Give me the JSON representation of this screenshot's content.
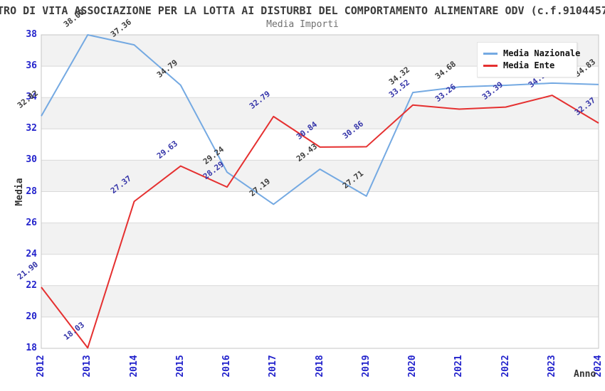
{
  "title": "TRO DI VITA ASSOCIAZIONE PER LA LOTTA AI DISTURBI DEL COMPORTAMENTO ALIMENTARE ODV (c.f.9104457",
  "subtitle": "Media Importi",
  "colors": {
    "tick_blue": "#2323cc",
    "band_gray": "#f2f2f2",
    "gridline": "#d9d9d9",
    "plot_border": "#c6c6c6",
    "title_gray": "#3c3c3c",
    "subtitle_gray": "#707070"
  },
  "chart_data": {
    "type": "line",
    "title": "Media Importi",
    "xlabel": "Anno",
    "ylabel": "Media",
    "x": [
      "2012",
      "2013",
      "2014",
      "2015",
      "2016",
      "2017",
      "2018",
      "2019",
      "2020",
      "2021",
      "2022",
      "2023",
      "2024"
    ],
    "yticks": [
      18,
      20,
      22,
      24,
      26,
      28,
      30,
      32,
      34,
      36,
      38
    ],
    "ylim": [
      18,
      38
    ],
    "grid": "horizontal, alternating gray bands every 2 units",
    "legend_position": "top-right",
    "series": [
      {
        "name": "Media Nazionale",
        "color": "#74a9e2",
        "label_color": "#3d3d3d",
        "values": [
          32.82,
          38.0,
          37.36,
          34.79,
          29.24,
          27.19,
          29.43,
          27.71,
          34.32,
          34.68,
          34.78,
          34.92,
          34.83
        ],
        "labels": [
          "32.82",
          "38.00",
          "37.36",
          "34.79",
          "29.24",
          "27.19",
          "29.43",
          "27.71",
          "34.32",
          "34.68",
          "34.78",
          "34.92",
          "34.83"
        ]
      },
      {
        "name": "Media Ente",
        "color": "#e53030",
        "label_color": "#3434a8",
        "values": [
          21.9,
          18.03,
          27.37,
          29.63,
          28.29,
          32.79,
          30.84,
          30.86,
          33.52,
          33.26,
          33.39,
          34.14,
          32.37
        ],
        "labels": [
          "21.90",
          "18.03",
          "27.37",
          "29.63",
          "28.29",
          "32.79",
          "30.84",
          "30.86",
          "33.52",
          "33.26",
          "33.39",
          "34.14",
          "32.37"
        ]
      }
    ]
  }
}
